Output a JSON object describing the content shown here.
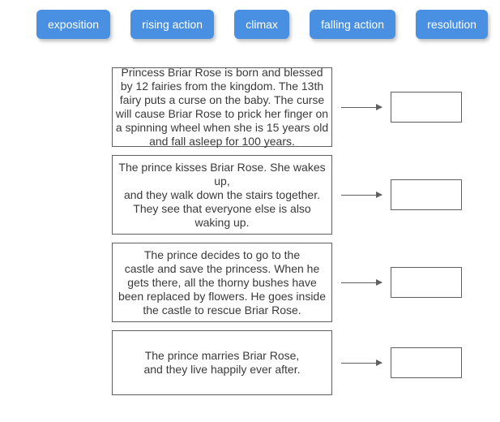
{
  "terms": [
    {
      "label": "exposition"
    },
    {
      "label": "rising action"
    },
    {
      "label": "climax"
    },
    {
      "label": "falling action"
    },
    {
      "label": "resolution"
    }
  ],
  "cards": [
    {
      "lines": [
        "Princess Briar Rose is born and blessed",
        "by 12 fairies from the kingdom. The 13th",
        "fairy puts a curse on the baby. The curse",
        "will cause Briar Rose to prick her finger on",
        "a spinning wheel when she is 15 years old",
        "and fall asleep for 100 years."
      ],
      "heightClass": "card-tall"
    },
    {
      "lines": [
        "The prince kisses Briar Rose. She wakes up,",
        "and they walk down the stairs together.",
        "They see that everyone else is also waking up."
      ],
      "heightClass": "card-med"
    },
    {
      "lines": [
        "The prince decides to go to the",
        "castle and save the princess. When he",
        "gets there, all the thorny bushes have",
        "been replaced by flowers. He goes inside",
        "the castle to rescue Briar Rose."
      ],
      "heightClass": "card-med2"
    },
    {
      "lines": [
        "The prince marries Briar Rose,",
        "and they live happily ever after."
      ],
      "heightClass": "card-short"
    }
  ],
  "styling": {
    "chip_bg": "#4a90e2",
    "chip_text": "#ffffff",
    "card_border": "#606060",
    "card_text": "#3a3a3a",
    "background": "#ffffff",
    "arrow_color": "#606060",
    "chip_fontsize": 14,
    "card_fontsize": 14
  }
}
